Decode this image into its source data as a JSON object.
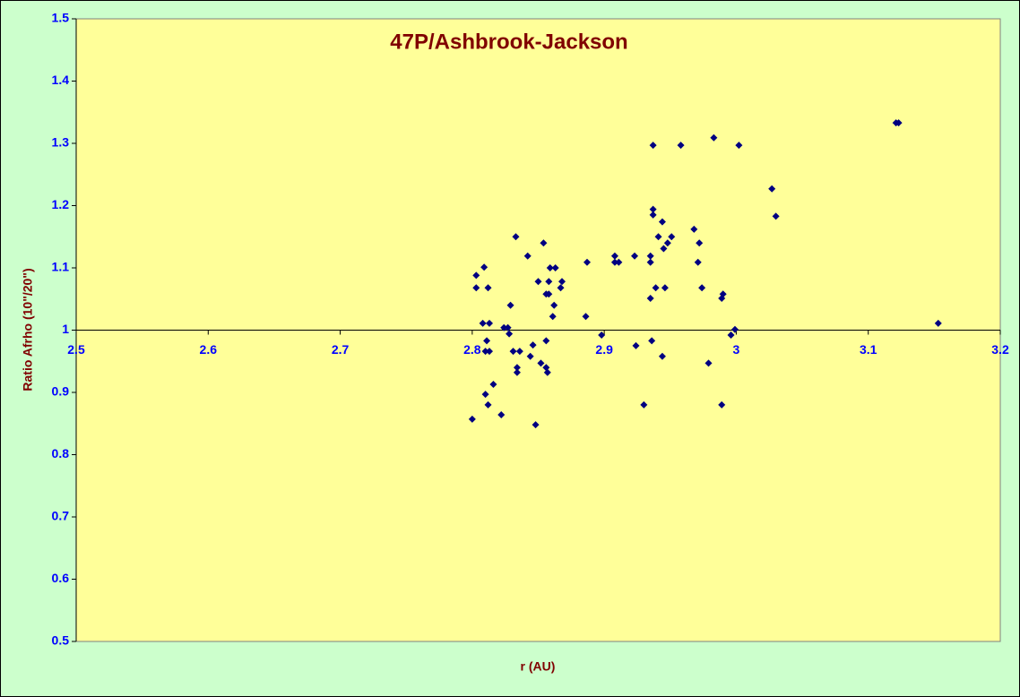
{
  "chart_data": {
    "type": "scatter",
    "title": "47P/Ashbrook-Jackson",
    "xlabel": "r (AU)",
    "ylabel": "Ratio Afrho (10\"/20\")",
    "color": "#000080",
    "xlim": [
      2.5,
      3.2
    ],
    "xticks": [
      2.5,
      2.6,
      2.7,
      2.8,
      2.9,
      3,
      3.1,
      3.2
    ],
    "ylim": [
      0.5,
      1.5
    ],
    "yticks": [
      0.5,
      0.6,
      0.7,
      0.8,
      0.9,
      1,
      1.1,
      1.2,
      1.3,
      1.4,
      1.5
    ],
    "x": [
      2.8,
      2.803,
      2.803,
      2.809,
      2.808,
      2.811,
      2.812,
      2.813,
      2.81,
      2.813,
      2.81,
      2.812,
      2.816,
      2.822,
      2.824,
      2.827,
      2.828,
      2.829,
      2.831,
      2.833,
      2.834,
      2.834,
      2.836,
      2.842,
      2.844,
      2.846,
      2.848,
      2.85,
      2.852,
      2.854,
      2.856,
      2.856,
      2.856,
      2.857,
      2.858,
      2.858,
      2.859,
      2.861,
      2.862,
      2.863,
      2.867,
      2.868,
      2.886,
      2.887,
      2.898,
      2.908,
      2.908,
      2.911,
      2.923,
      2.924,
      2.93,
      2.935,
      2.935,
      2.935,
      2.936,
      2.937,
      2.937,
      2.937,
      2.939,
      2.941,
      2.944,
      2.944,
      2.945,
      2.946,
      2.948,
      2.951,
      2.958,
      2.968,
      2.971,
      2.972,
      2.974,
      2.979,
      2.983,
      2.989,
      2.99,
      2.989,
      2.996,
      2.999,
      3.002,
      3.027,
      3.03,
      3.121,
      3.123,
      3.153
    ],
    "values": [
      0.857,
      1.088,
      1.068,
      1.101,
      1.011,
      0.983,
      1.068,
      1.011,
      0.966,
      0.966,
      0.897,
      0.88,
      0.913,
      0.864,
      1.004,
      1.004,
      0.994,
      1.04,
      0.966,
      1.15,
      0.94,
      0.932,
      0.966,
      1.119,
      0.958,
      0.976,
      0.848,
      1.078,
      0.947,
      1.14,
      0.94,
      1.058,
      0.983,
      0.932,
      1.078,
      1.058,
      1.1,
      1.022,
      1.04,
      1.1,
      1.068,
      1.078,
      1.022,
      1.109,
      0.992,
      1.119,
      1.109,
      1.109,
      1.119,
      0.975,
      0.88,
      1.119,
      1.109,
      1.051,
      0.983,
      1.297,
      1.194,
      1.185,
      1.068,
      1.15,
      1.174,
      0.958,
      1.131,
      1.068,
      1.14,
      1.15,
      1.297,
      1.162,
      1.109,
      1.14,
      1.068,
      0.947,
      1.309,
      1.051,
      1.058,
      0.88,
      0.992,
      1.001,
      1.297,
      1.227,
      1.183,
      1.333,
      1.333,
      1.011
    ]
  }
}
